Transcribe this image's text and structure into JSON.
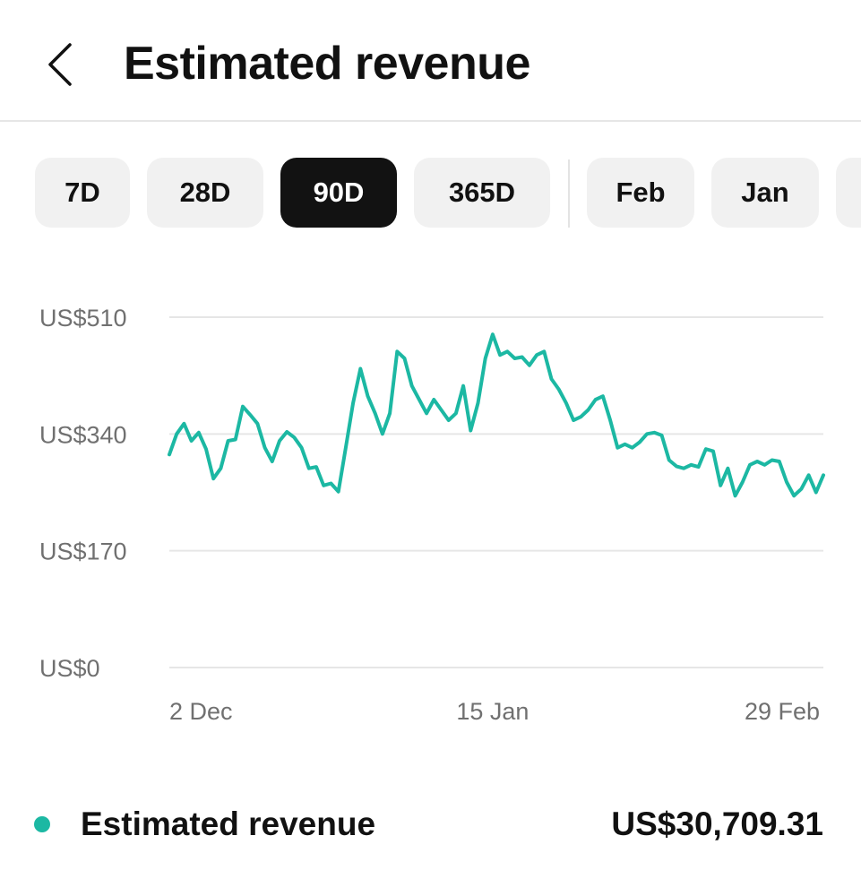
{
  "header": {
    "title": "Estimated revenue",
    "back_icon": "chevron-left-icon"
  },
  "filters": {
    "pills": [
      {
        "label": "7D",
        "active": false
      },
      {
        "label": "28D",
        "active": false
      },
      {
        "label": "90D",
        "active": true
      },
      {
        "label": "365D",
        "active": false
      },
      {
        "label": "Feb",
        "active": false
      },
      {
        "label": "Jan",
        "active": false
      },
      {
        "label": "",
        "active": false
      }
    ]
  },
  "colors": {
    "accent": "#1cb8a3",
    "active_pill": "#121212",
    "pill": "#f1f1f1",
    "grid": "#e6e6e6",
    "axis_text": "#707070"
  },
  "chart_data": {
    "type": "line",
    "title": "",
    "xlabel": "",
    "ylabel": "",
    "ylim": [
      0,
      510
    ],
    "y_ticks": [
      {
        "value": 510,
        "label": "US$510"
      },
      {
        "value": 340,
        "label": "US$340"
      },
      {
        "value": 170,
        "label": "US$170"
      },
      {
        "value": 0,
        "label": "US$0"
      }
    ],
    "x_ticks": [
      {
        "index": 0,
        "label": "2 Dec"
      },
      {
        "index": 44,
        "label": "15 Jan"
      },
      {
        "index": 89,
        "label": "29 Feb"
      }
    ],
    "grid": true,
    "legend": "bottom",
    "series": [
      {
        "name": "Estimated revenue",
        "color": "#1cb8a3",
        "values": [
          310,
          340,
          355,
          330,
          342,
          318,
          275,
          290,
          330,
          332,
          380,
          368,
          355,
          320,
          300,
          330,
          343,
          335,
          320,
          290,
          292,
          265,
          268,
          256,
          320,
          385,
          435,
          395,
          370,
          340,
          370,
          460,
          450,
          410,
          390,
          370,
          390,
          375,
          360,
          370,
          410,
          345,
          385,
          450,
          485,
          455,
          460,
          450,
          452,
          440,
          455,
          460,
          420,
          405,
          385,
          360,
          365,
          375,
          390,
          395,
          360,
          320,
          325,
          320,
          328,
          340,
          342,
          338,
          302,
          293,
          290,
          295,
          292,
          318,
          315,
          265,
          290,
          250,
          270,
          295,
          300,
          295,
          302,
          300,
          270,
          250,
          260,
          280,
          255,
          280
        ]
      }
    ]
  },
  "legend": {
    "label": "Estimated revenue",
    "total": "US$30,709.31"
  }
}
